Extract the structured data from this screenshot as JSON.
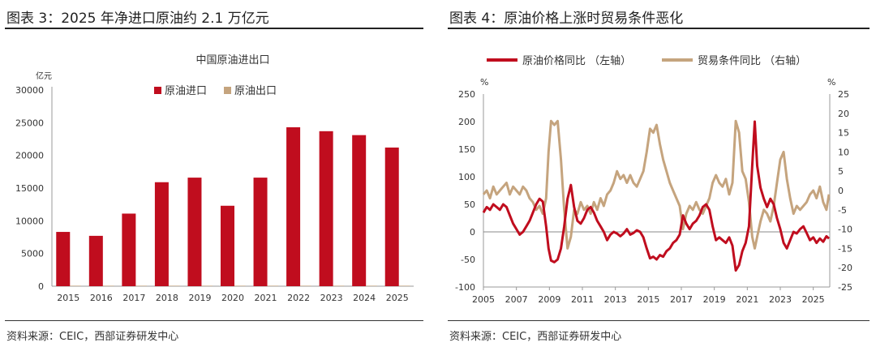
{
  "left": {
    "figure_title": "图表 3：2025 年净进口原油约 2.1 万亿元",
    "source": "资料来源：CEIC，西部证券研发中心",
    "chart_data": {
      "type": "bar",
      "title": "中国原油进出口",
      "unit": "亿元",
      "categories": [
        "2015",
        "2016",
        "2017",
        "2018",
        "2019",
        "2020",
        "2021",
        "2022",
        "2023",
        "2024",
        "2025"
      ],
      "series": [
        {
          "name": "原油进口",
          "color": "#c00d1e",
          "values": [
            8300,
            7700,
            11100,
            15900,
            16600,
            12300,
            16600,
            24300,
            23700,
            23100,
            21200
          ]
        },
        {
          "name": "原油出口",
          "color": "#c5a47e",
          "values": [
            30,
            40,
            60,
            30,
            30,
            20,
            20,
            20,
            30,
            30,
            50
          ]
        }
      ],
      "ylim": [
        0,
        30000
      ],
      "yticks": [
        0,
        5000,
        10000,
        15000,
        20000,
        25000,
        30000
      ],
      "legend": "top-center"
    }
  },
  "right": {
    "figure_title": "图表 4：原油价格上涨时贸易条件恶化",
    "source": "资料来源：CEIC，西部证券研发中心",
    "chart_data": {
      "type": "line",
      "x_ticks": [
        "2005",
        "2007",
        "2009",
        "2011",
        "2013",
        "2015",
        "2017",
        "2019",
        "2021",
        "2023",
        "2025"
      ],
      "xlim": [
        2005,
        2026
      ],
      "left_unit": "%",
      "right_unit": "%",
      "ylim_left": [
        -100,
        250
      ],
      "yticks_left": [
        -100,
        -50,
        0,
        50,
        100,
        150,
        200,
        250
      ],
      "ylim_right": [
        -25,
        25
      ],
      "yticks_right": [
        -25,
        -20,
        -15,
        -10,
        -5,
        0,
        5,
        10,
        15,
        20,
        25
      ],
      "legend": "top",
      "series": [
        {
          "name": "原油价格同比 （左轴）",
          "axis": "left",
          "color": "#c00d1e",
          "points": [
            [
              2005.0,
              35
            ],
            [
              2005.2,
              45
            ],
            [
              2005.4,
              40
            ],
            [
              2005.6,
              50
            ],
            [
              2005.8,
              45
            ],
            [
              2006.0,
              40
            ],
            [
              2006.2,
              50
            ],
            [
              2006.4,
              45
            ],
            [
              2006.6,
              30
            ],
            [
              2006.8,
              15
            ],
            [
              2007.0,
              5
            ],
            [
              2007.2,
              -5
            ],
            [
              2007.4,
              0
            ],
            [
              2007.6,
              10
            ],
            [
              2007.8,
              20
            ],
            [
              2008.0,
              35
            ],
            [
              2008.2,
              50
            ],
            [
              2008.4,
              60
            ],
            [
              2008.6,
              55
            ],
            [
              2008.8,
              10
            ],
            [
              2008.95,
              -30
            ],
            [
              2009.1,
              -52
            ],
            [
              2009.3,
              -55
            ],
            [
              2009.5,
              -50
            ],
            [
              2009.7,
              -30
            ],
            [
              2009.9,
              10
            ],
            [
              2010.1,
              60
            ],
            [
              2010.3,
              85
            ],
            [
              2010.5,
              45
            ],
            [
              2010.7,
              20
            ],
            [
              2010.9,
              15
            ],
            [
              2011.1,
              25
            ],
            [
              2011.3,
              40
            ],
            [
              2011.5,
              45
            ],
            [
              2011.7,
              35
            ],
            [
              2011.9,
              20
            ],
            [
              2012.1,
              10
            ],
            [
              2012.3,
              0
            ],
            [
              2012.5,
              -15
            ],
            [
              2012.7,
              -5
            ],
            [
              2012.9,
              0
            ],
            [
              2013.1,
              -3
            ],
            [
              2013.3,
              -8
            ],
            [
              2013.5,
              -3
            ],
            [
              2013.7,
              5
            ],
            [
              2013.9,
              -5
            ],
            [
              2014.1,
              -2
            ],
            [
              2014.3,
              3
            ],
            [
              2014.5,
              0
            ],
            [
              2014.7,
              -10
            ],
            [
              2014.9,
              -30
            ],
            [
              2015.1,
              -48
            ],
            [
              2015.3,
              -45
            ],
            [
              2015.5,
              -50
            ],
            [
              2015.7,
              -42
            ],
            [
              2015.9,
              -45
            ],
            [
              2016.1,
              -35
            ],
            [
              2016.3,
              -30
            ],
            [
              2016.5,
              -20
            ],
            [
              2016.7,
              -15
            ],
            [
              2016.9,
              -5
            ],
            [
              2017.1,
              30
            ],
            [
              2017.3,
              15
            ],
            [
              2017.5,
              5
            ],
            [
              2017.7,
              15
            ],
            [
              2017.9,
              20
            ],
            [
              2018.1,
              30
            ],
            [
              2018.3,
              45
            ],
            [
              2018.5,
              50
            ],
            [
              2018.7,
              40
            ],
            [
              2018.9,
              10
            ],
            [
              2019.1,
              -15
            ],
            [
              2019.3,
              -10
            ],
            [
              2019.5,
              -15
            ],
            [
              2019.7,
              -20
            ],
            [
              2019.9,
              -10
            ],
            [
              2020.1,
              -25
            ],
            [
              2020.3,
              -70
            ],
            [
              2020.5,
              -60
            ],
            [
              2020.7,
              -35
            ],
            [
              2020.9,
              -20
            ],
            [
              2021.1,
              10
            ],
            [
              2021.3,
              120
            ],
            [
              2021.45,
              200
            ],
            [
              2021.6,
              120
            ],
            [
              2021.8,
              80
            ],
            [
              2022.0,
              60
            ],
            [
              2022.2,
              45
            ],
            [
              2022.4,
              60
            ],
            [
              2022.6,
              50
            ],
            [
              2022.8,
              25
            ],
            [
              2023.0,
              5
            ],
            [
              2023.2,
              -20
            ],
            [
              2023.4,
              -30
            ],
            [
              2023.6,
              -15
            ],
            [
              2023.8,
              0
            ],
            [
              2024.0,
              -3
            ],
            [
              2024.2,
              5
            ],
            [
              2024.4,
              10
            ],
            [
              2024.6,
              -2
            ],
            [
              2024.8,
              -15
            ],
            [
              2025.0,
              -10
            ],
            [
              2025.2,
              -20
            ],
            [
              2025.4,
              -12
            ],
            [
              2025.6,
              -18
            ],
            [
              2025.8,
              -8
            ],
            [
              2025.95,
              -12
            ]
          ]
        },
        {
          "name": "贸易条件同比 （右轴）",
          "axis": "right",
          "color": "#c5a47e",
          "points": [
            [
              2005.0,
              -1
            ],
            [
              2005.2,
              0
            ],
            [
              2005.4,
              -2
            ],
            [
              2005.6,
              1
            ],
            [
              2005.8,
              -1
            ],
            [
              2006.0,
              0
            ],
            [
              2006.2,
              1
            ],
            [
              2006.4,
              2
            ],
            [
              2006.6,
              -1
            ],
            [
              2006.8,
              1
            ],
            [
              2007.0,
              0
            ],
            [
              2007.2,
              -1
            ],
            [
              2007.4,
              1
            ],
            [
              2007.6,
              0
            ],
            [
              2007.8,
              -2
            ],
            [
              2008.0,
              -3
            ],
            [
              2008.2,
              -5
            ],
            [
              2008.4,
              -4
            ],
            [
              2008.6,
              -6
            ],
            [
              2008.8,
              -2
            ],
            [
              2008.95,
              10
            ],
            [
              2009.1,
              18
            ],
            [
              2009.3,
              17
            ],
            [
              2009.5,
              18
            ],
            [
              2009.7,
              8
            ],
            [
              2009.9,
              -5
            ],
            [
              2010.1,
              -15
            ],
            [
              2010.3,
              -12
            ],
            [
              2010.5,
              -5
            ],
            [
              2010.7,
              -6
            ],
            [
              2010.9,
              -3
            ],
            [
              2011.1,
              -5
            ],
            [
              2011.3,
              -4
            ],
            [
              2011.5,
              -6
            ],
            [
              2011.7,
              -3
            ],
            [
              2011.9,
              -5
            ],
            [
              2012.1,
              -2
            ],
            [
              2012.3,
              -4
            ],
            [
              2012.5,
              -1
            ],
            [
              2012.7,
              0
            ],
            [
              2012.9,
              2
            ],
            [
              2013.1,
              5
            ],
            [
              2013.3,
              3
            ],
            [
              2013.5,
              4
            ],
            [
              2013.7,
              2
            ],
            [
              2013.9,
              4
            ],
            [
              2014.1,
              2
            ],
            [
              2014.3,
              1
            ],
            [
              2014.5,
              3
            ],
            [
              2014.7,
              5
            ],
            [
              2014.9,
              10
            ],
            [
              2015.1,
              16
            ],
            [
              2015.3,
              15
            ],
            [
              2015.5,
              17
            ],
            [
              2015.7,
              12
            ],
            [
              2015.9,
              8
            ],
            [
              2016.1,
              5
            ],
            [
              2016.3,
              2
            ],
            [
              2016.5,
              0
            ],
            [
              2016.7,
              -2
            ],
            [
              2016.9,
              -4
            ],
            [
              2017.1,
              -10
            ],
            [
              2017.3,
              -6
            ],
            [
              2017.5,
              -4
            ],
            [
              2017.7,
              -5
            ],
            [
              2017.9,
              -3
            ],
            [
              2018.1,
              -5
            ],
            [
              2018.3,
              -6
            ],
            [
              2018.5,
              -4
            ],
            [
              2018.7,
              -2
            ],
            [
              2018.9,
              2
            ],
            [
              2019.1,
              4
            ],
            [
              2019.3,
              2
            ],
            [
              2019.5,
              1
            ],
            [
              2019.7,
              3
            ],
            [
              2019.9,
              -1
            ],
            [
              2020.1,
              2
            ],
            [
              2020.3,
              18
            ],
            [
              2020.5,
              15
            ],
            [
              2020.7,
              5
            ],
            [
              2020.9,
              3
            ],
            [
              2021.1,
              -3
            ],
            [
              2021.3,
              -12
            ],
            [
              2021.45,
              -15
            ],
            [
              2021.6,
              -12
            ],
            [
              2021.8,
              -8
            ],
            [
              2022.0,
              -5
            ],
            [
              2022.2,
              -6
            ],
            [
              2022.4,
              -8
            ],
            [
              2022.6,
              -4
            ],
            [
              2022.8,
              2
            ],
            [
              2023.0,
              8
            ],
            [
              2023.2,
              10
            ],
            [
              2023.4,
              3
            ],
            [
              2023.6,
              -2
            ],
            [
              2023.8,
              -6
            ],
            [
              2024.0,
              -4
            ],
            [
              2024.2,
              -5
            ],
            [
              2024.4,
              -4
            ],
            [
              2024.6,
              -3
            ],
            [
              2024.8,
              -1
            ],
            [
              2025.0,
              0
            ],
            [
              2025.2,
              -2
            ],
            [
              2025.4,
              1
            ],
            [
              2025.6,
              -3
            ],
            [
              2025.8,
              -5
            ],
            [
              2025.95,
              -1
            ]
          ]
        }
      ]
    }
  }
}
